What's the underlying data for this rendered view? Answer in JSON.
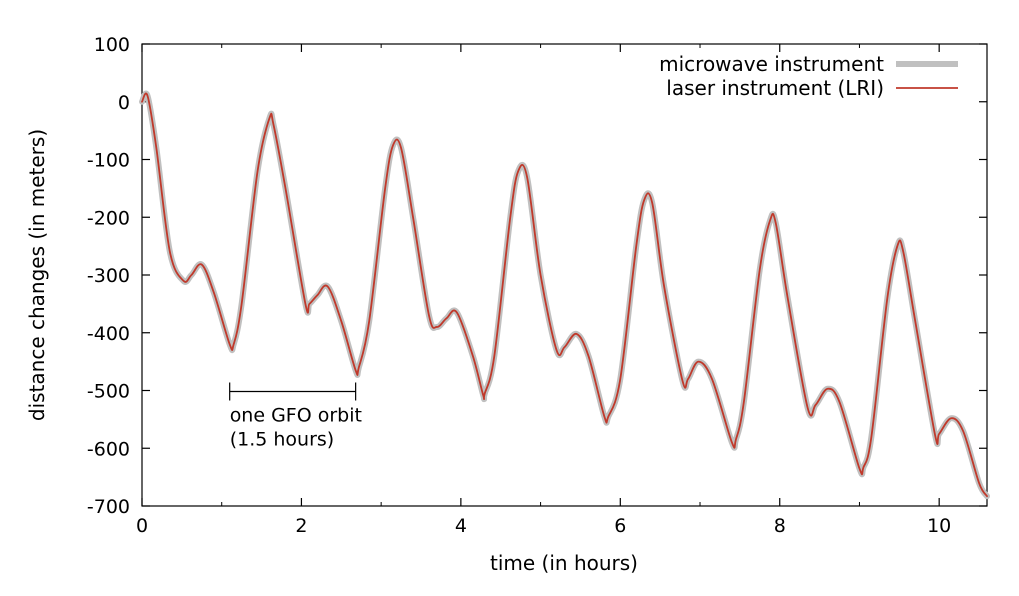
{
  "chart_data": {
    "type": "line",
    "title": "",
    "xlabel": "time (in hours)",
    "ylabel": "distance changes (in meters)",
    "xlim": [
      0,
      10.6
    ],
    "ylim": [
      -700,
      100
    ],
    "xticks": [
      0,
      2,
      4,
      6,
      8,
      10
    ],
    "yticks": [
      100,
      0,
      -100,
      -200,
      -300,
      -400,
      -500,
      -600,
      -700
    ],
    "grid": false,
    "legend_position": "top-right",
    "series": [
      {
        "name": "microwave instrument",
        "color": "#c0c0c0",
        "style": "thick"
      },
      {
        "name": "laser instrument (LRI)",
        "color": "#c0392b",
        "style": "thin"
      }
    ],
    "x": [
      0.0,
      0.07,
      0.18,
      0.35,
      0.52,
      0.62,
      0.75,
      0.9,
      1.1,
      1.15,
      1.25,
      1.45,
      1.6,
      1.65,
      1.8,
      2.05,
      2.1,
      2.2,
      2.33,
      2.5,
      2.68,
      2.72,
      2.85,
      3.05,
      3.15,
      3.25,
      3.4,
      3.6,
      3.7,
      3.82,
      3.95,
      4.15,
      4.28,
      4.3,
      4.42,
      4.62,
      4.72,
      4.83,
      5.0,
      5.2,
      5.3,
      5.45,
      5.6,
      5.8,
      5.85,
      6.0,
      6.2,
      6.3,
      6.4,
      6.55,
      6.78,
      6.85,
      6.98,
      7.15,
      7.4,
      7.45,
      7.55,
      7.75,
      7.88,
      7.95,
      8.1,
      8.35,
      8.45,
      8.6,
      8.75,
      9.0,
      9.05,
      9.15,
      9.35,
      9.48,
      9.55,
      9.7,
      9.95,
      10.0,
      10.15,
      10.3,
      10.5,
      10.6
    ],
    "values": [
      0,
      10,
      -80,
      -260,
      -310,
      -300,
      -282,
      -330,
      -420,
      -420,
      -350,
      -120,
      -28,
      -40,
      -150,
      -350,
      -350,
      -335,
      -320,
      -380,
      -465,
      -460,
      -380,
      -150,
      -75,
      -80,
      -200,
      -370,
      -390,
      -375,
      -365,
      -440,
      -508,
      -505,
      -440,
      -200,
      -120,
      -130,
      -300,
      -430,
      -425,
      -402,
      -440,
      -545,
      -545,
      -480,
      -250,
      -170,
      -175,
      -320,
      -483,
      -480,
      -450,
      -480,
      -590,
      -585,
      -520,
      -290,
      -205,
      -210,
      -340,
      -530,
      -525,
      -497,
      -520,
      -635,
      -633,
      -580,
      -340,
      -248,
      -260,
      -380,
      -578,
      -575,
      -548,
      -570,
      -660,
      -683
    ]
  },
  "annotation": {
    "line1": "one GFO orbit",
    "line2": "(1.5 hours)",
    "x_start": 1.1,
    "x_end": 2.68,
    "y": -500
  }
}
